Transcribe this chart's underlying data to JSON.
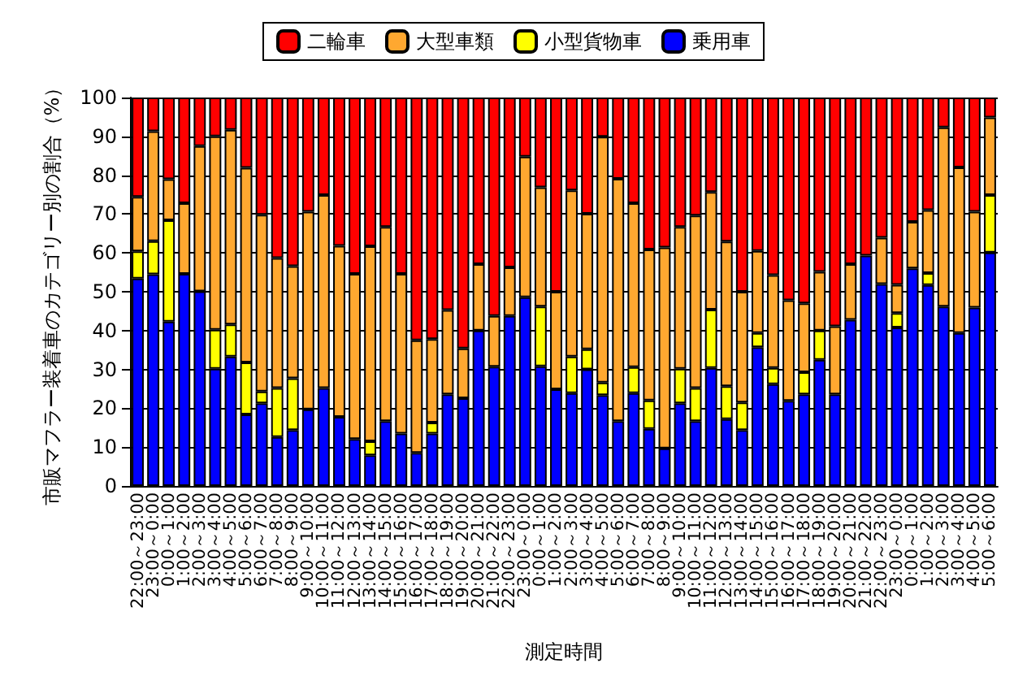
{
  "chart_data": {
    "type": "bar",
    "stacked": true,
    "xlabel": "測定時間",
    "ylabel": "市販マフラー装着車のカテゴリー別の割合（%）",
    "categories": [
      "22:00～23:00",
      "23:00～0:00",
      "0:00～1:00",
      "1:00～2:00",
      "2:00～3:00",
      "3:00～4:00",
      "4:00～5:00",
      "5:00～6:00",
      "6:00～7:00",
      "7:00～8:00",
      "8:00～9:00",
      "9:00～10:00",
      "10:00～11:00",
      "11:00～12:00",
      "12:00～13:00",
      "13:00～14:00",
      "14:00～15:00",
      "15:00～16:00",
      "16:00～17:00",
      "17:00～18:00",
      "18:00～19:00",
      "19:00～20:00",
      "20:00～21:00",
      "21:00～22:00",
      "22:00～23:00",
      "23:00～0:00",
      "0:00～1:00",
      "1:00～2:00",
      "2:00～3:00",
      "3:00～4:00",
      "4:00～5:00",
      "5:00～6:00",
      "6:00～7:00",
      "7:00～8:00",
      "8:00～9:00",
      "9:00～10:00",
      "10:00～11:00",
      "11:00～12:00",
      "12:00～13:00",
      "13:00～14:00",
      "14:00～15:00",
      "15:00～16:00",
      "16:00～17:00",
      "17:00～18:00",
      "18:00～19:00",
      "19:00～20:00",
      "20:00～21:00",
      "21:00～22:00",
      "22:00～23:00",
      "23:00～0:00",
      "0:00～1:00",
      "1:00～2:00",
      "2:00～3:00",
      "3:00～4:00",
      "4:00～5:00",
      "5:00～6:00"
    ],
    "series": [
      {
        "name": "乗用車",
        "color": "#0000ff",
        "values": [
          53.4,
          54.5,
          42.3,
          54.6,
          50.1,
          30.2,
          33.3,
          18.4,
          21.3,
          12.6,
          14.4,
          19.7,
          25.2,
          17.8,
          12.1,
          7.9,
          16.7,
          13.5,
          8.5,
          13.5,
          23.6,
          22.6,
          40.0,
          30.7,
          43.8,
          48.6,
          30.8,
          24.9,
          23.9,
          30.0,
          23.4,
          16.7,
          23.9,
          14.7,
          9.7,
          21.3,
          16.7,
          30.4,
          17.2,
          14.4,
          35.7,
          26.2,
          21.9,
          23.6,
          32.5,
          23.6,
          42.8,
          59.3,
          52.0,
          40.8,
          56.0,
          51.7,
          46.2,
          39.4,
          45.9,
          60.1
        ]
      },
      {
        "name": "小型貨物車",
        "color": "#ffff00",
        "values": [
          7.0,
          8.5,
          26.1,
          0,
          0,
          10.0,
          8.3,
          13.4,
          3.0,
          12.6,
          13.3,
          0,
          0,
          0,
          0,
          3.6,
          0,
          0,
          0,
          2.8,
          0,
          0,
          0,
          0,
          0,
          0,
          15.4,
          0,
          9.4,
          5.2,
          3.2,
          0,
          6.7,
          7.3,
          0,
          8.9,
          8.5,
          15.0,
          8.5,
          7.1,
          3.7,
          4.2,
          0,
          5.7,
          7.5,
          0,
          0,
          0,
          0,
          3.7,
          0,
          3.1,
          0,
          0,
          0,
          14.8
        ]
      },
      {
        "name": "大型車類",
        "color": "#ffa830",
        "values": [
          14.0,
          28.3,
          10.6,
          18.2,
          37.4,
          49.8,
          50.1,
          50.1,
          45.5,
          33.5,
          28.9,
          50.9,
          49.7,
          44.0,
          42.5,
          50.2,
          50.0,
          41.1,
          29.0,
          21.5,
          21.7,
          12.8,
          17.1,
          13.1,
          12.5,
          36.2,
          30.7,
          25.1,
          42.8,
          34.9,
          63.3,
          62.4,
          42.2,
          38.9,
          51.7,
          36.5,
          44.4,
          30.3,
          37.2,
          28.5,
          21.1,
          23.9,
          25.9,
          17.7,
          15.1,
          17.5,
          14.3,
          0,
          11.9,
          7.3,
          12.0,
          16.2,
          46.1,
          42.6,
          24.7,
          20.0
        ]
      },
      {
        "name": "二輪車",
        "color": "#ff0000",
        "values": [
          25.6,
          8.7,
          21.0,
          27.2,
          12.5,
          10.0,
          8.3,
          18.1,
          30.2,
          41.3,
          43.4,
          29.4,
          25.1,
          38.2,
          45.4,
          38.3,
          33.3,
          45.4,
          62.5,
          62.2,
          54.7,
          64.6,
          42.9,
          56.2,
          43.7,
          15.2,
          23.1,
          50.0,
          23.9,
          29.9,
          10.1,
          20.9,
          27.2,
          39.1,
          38.6,
          33.3,
          30.4,
          24.3,
          37.1,
          50.0,
          39.5,
          45.7,
          52.2,
          53.0,
          44.9,
          58.9,
          42.9,
          40.7,
          36.1,
          48.2,
          32.0,
          29.0,
          7.7,
          18.0,
          29.4,
          5.1
        ]
      }
    ],
    "ylim": [
      0,
      100
    ],
    "yticks": [
      0,
      10,
      20,
      30,
      40,
      50,
      60,
      70,
      80,
      90,
      100
    ],
    "grid": "y",
    "legend": "top"
  }
}
